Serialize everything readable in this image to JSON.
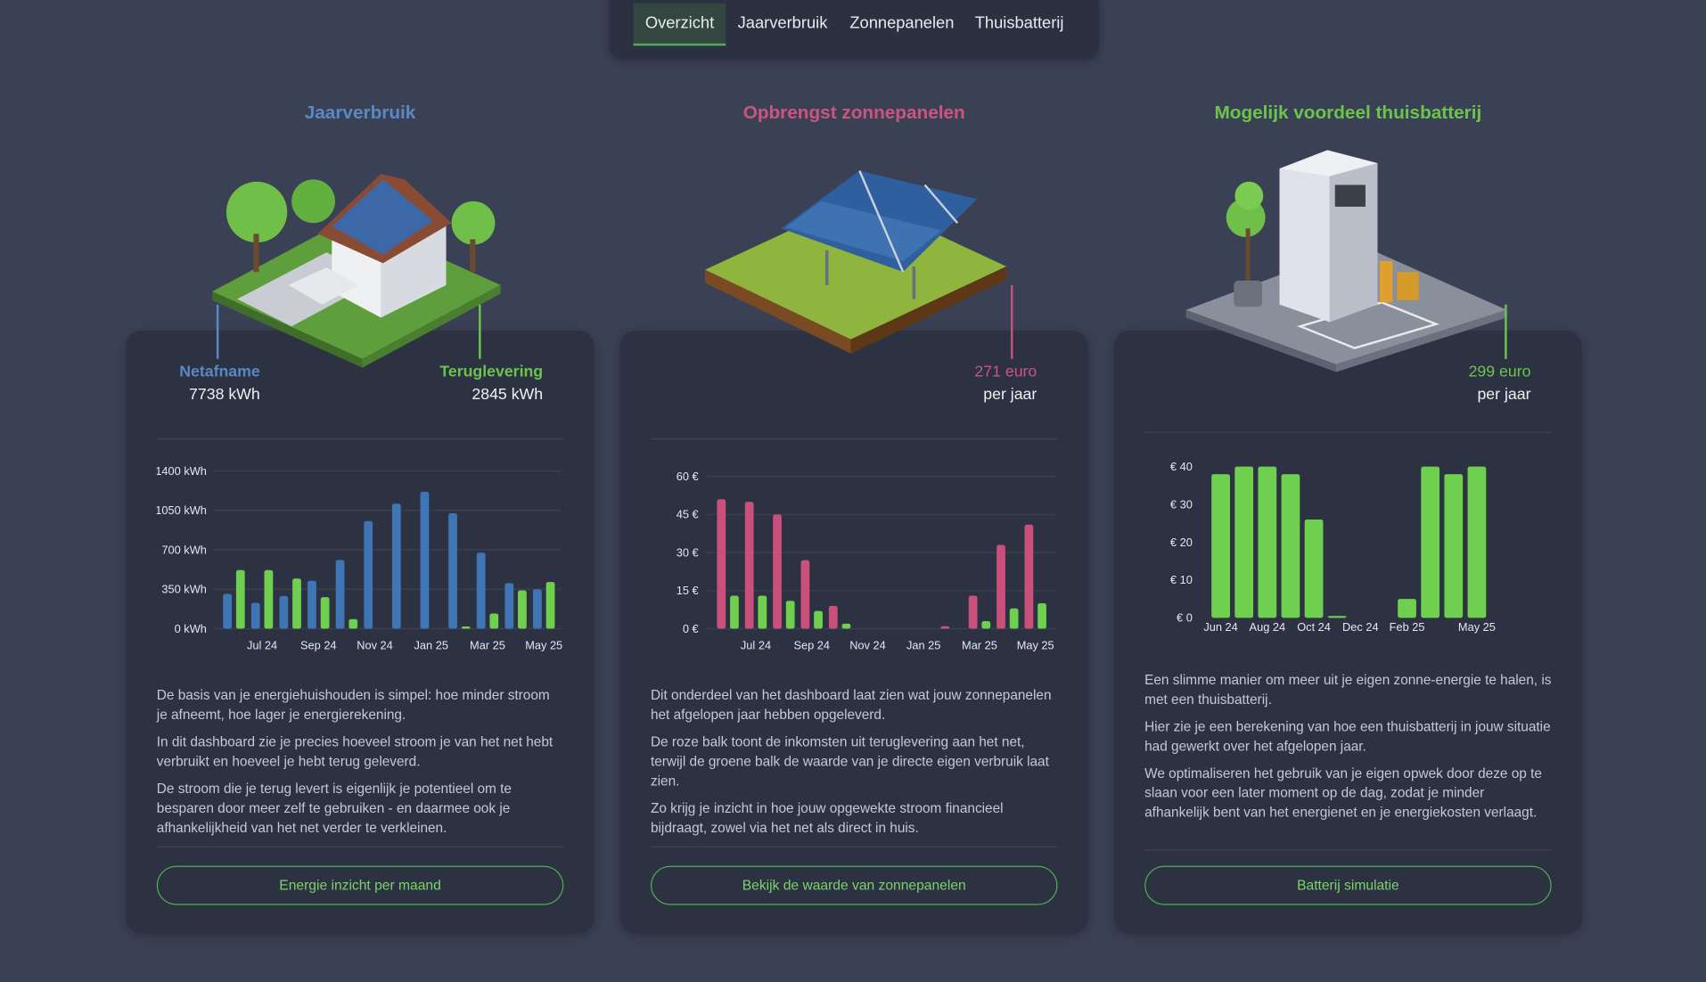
{
  "nav": {
    "tabs": [
      "Overzicht",
      "Jaarverbruik",
      "Zonnepanelen",
      "Thuisbatterij"
    ],
    "active": 0
  },
  "cards": [
    {
      "title": "Jaarverbruik",
      "title_color": "#5a88c4",
      "stats": [
        {
          "label": "Netafname",
          "value": "7738 kWh"
        },
        {
          "label": "Teruglevering",
          "value": "2845 kWh"
        }
      ],
      "chart": {
        "type": "bar",
        "categories": [
          null,
          "Jul 24",
          null,
          "Sep 24",
          null,
          "Nov 24",
          null,
          "Jan 25",
          null,
          "Mar 25",
          null,
          "May 25"
        ],
        "series": [
          {
            "color": "#3f74b5",
            "values": [
              310,
              230,
              290,
              425,
              610,
              955,
              1110,
              1215,
              1025,
              675,
              405,
              350
            ]
          },
          {
            "color": "#6fcf4e",
            "values": [
              520,
              520,
              445,
              280,
              85,
              0,
              0,
              0,
              20,
              135,
              340,
              415
            ]
          }
        ],
        "ylim": [
          0,
          1400
        ],
        "yticks": [
          {
            "value": 0,
            "label": "0 kWh"
          },
          {
            "value": 350,
            "label": "350 kWh"
          },
          {
            "value": 700,
            "label": "700 kWh"
          },
          {
            "value": 1050,
            "label": "1050 kWh"
          },
          {
            "value": 1400,
            "label": "1400 kWh"
          }
        ],
        "grid": true
      },
      "paragraphs": [
        "De basis van je energiehuishouden is simpel: hoe minder stroom je afneemt, hoe lager je energierekening.",
        "In dit dashboard zie je precies hoeveel stroom je van het net hebt verbruikt en hoeveel je hebt terug geleverd.",
        "De stroom die je terug levert is eigenlijk je potentieel om te besparen door meer zelf te gebruiken - en daarmee ook je afhankelijkheid van het net verder te verkleinen."
      ],
      "button": "Energie inzicht per maand"
    },
    {
      "title": "Opbrengst zonnepanelen",
      "title_color": "#cc5580",
      "stats": [
        {
          "value": "271 euro",
          "label": "per jaar"
        }
      ],
      "chart": {
        "type": "bar",
        "categories": [
          null,
          "Jul 24",
          null,
          "Sep 24",
          null,
          "Nov 24",
          null,
          "Jan 25",
          null,
          "Mar 25",
          null,
          "May 25"
        ],
        "series": [
          {
            "color": "#c8507a",
            "values": [
              51,
              50,
              45,
              27,
              9,
              0,
              0,
              0,
              1,
              13,
              33,
              41
            ]
          },
          {
            "color": "#6fcf4e",
            "values": [
              13,
              13,
              11,
              7,
              2,
              0,
              0,
              0,
              0,
              3,
              8,
              10
            ]
          }
        ],
        "ylim": [
          0,
          60
        ],
        "yticks": [
          {
            "value": 0,
            "label": "0 €"
          },
          {
            "value": 15,
            "label": "15 €"
          },
          {
            "value": 30,
            "label": "30 €"
          },
          {
            "value": 45,
            "label": "45 €"
          },
          {
            "value": 60,
            "label": "60 €"
          }
        ],
        "grid": true
      },
      "paragraphs": [
        "Dit onderdeel van het dashboard laat zien wat jouw zonnepanelen het afgelopen jaar hebben opgeleverd.",
        "De roze balk toont de inkomsten uit teruglevering aan het net, terwijl de groene balk de waarde van je directe eigen verbruik laat zien.",
        "Zo krijg je inzicht in hoe jouw opgewekte stroom financieel bijdraagt, zowel via het net als direct in huis."
      ],
      "button": "Bekijk de waarde van zonnepanelen"
    },
    {
      "title": "Mogelijk voordeel thuisbatterij",
      "title_color": "#6cc44c",
      "stats": [
        {
          "value": "299 euro",
          "label": "per jaar"
        }
      ],
      "chart": {
        "type": "bar",
        "categories": [
          "Jun 24",
          null,
          "Aug 24",
          null,
          "Oct 24",
          null,
          "Dec 24",
          null,
          "Feb 25",
          null,
          null,
          "May 25"
        ],
        "series": [
          {
            "color": "#6fcf4e",
            "values": [
              38,
              40,
              40,
              38,
              26,
              0.5,
              0,
              0,
              5,
              40,
              38,
              40
            ]
          }
        ],
        "ylim": [
          0,
          40
        ],
        "yticks": [
          {
            "value": 0,
            "label": "€ 0"
          },
          {
            "value": 10,
            "label": "€ 10"
          },
          {
            "value": 20,
            "label": "€ 20"
          },
          {
            "value": 30,
            "label": "€ 30"
          },
          {
            "value": 40,
            "label": "€ 40"
          }
        ],
        "grid": false
      },
      "paragraphs": [
        "Een slimme manier om meer uit je eigen zonne-energie te halen, is met een thuisbatterij.",
        "Hier zie je een berekening van hoe een thuisbatterij in jouw situatie had gewerkt over het afgelopen jaar.",
        "We optimaliseren het gebruik van je eigen opwek door deze op te slaan voor een later moment op de dag, zodat je minder afhankelijk bent van het energienet en je energiekosten verlaagt."
      ],
      "button": "Batterij simulatie"
    }
  ]
}
